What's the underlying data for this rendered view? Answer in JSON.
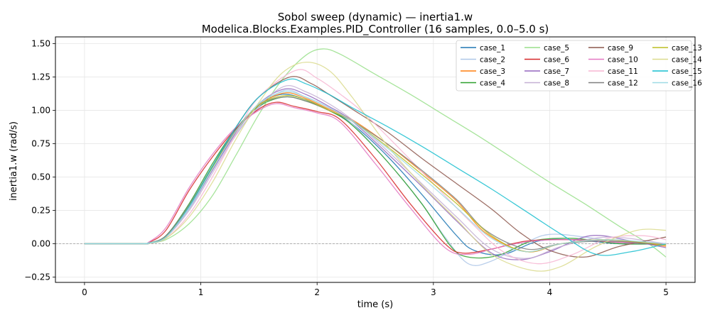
{
  "chart_data": {
    "type": "line",
    "title": "Sobol sweep (dynamic) — inertia1.w",
    "subtitle": "Modelica.Blocks.Examples.PID_Controller  (16 samples, 0.0–5.0 s)",
    "xlabel": "time (s)",
    "ylabel": "inertia1.w (rad/s)",
    "xlim": [
      -0.25,
      5.25
    ],
    "ylim": [
      -0.29,
      1.55
    ],
    "xticks": [
      0,
      1,
      2,
      3,
      4,
      5
    ],
    "xtick_labels": [
      "0",
      "1",
      "2",
      "3",
      "4",
      "5"
    ],
    "yticks": [
      -0.25,
      0.0,
      0.25,
      0.5,
      0.75,
      1.0,
      1.25,
      1.5
    ],
    "ytick_labels": [
      "−0.25",
      "0.00",
      "0.25",
      "0.50",
      "0.75",
      "1.00",
      "1.25",
      "1.50"
    ],
    "grid": true,
    "zero_line": true,
    "legend_position": "top-right",
    "legend_columns": 4,
    "series": [
      {
        "name": "case_1",
        "color": "#1f77b4",
        "x": [
          0,
          0.5,
          0.55,
          0.7,
          0.9,
          1.1,
          1.3,
          1.5,
          1.7,
          1.9,
          2.1,
          2.3,
          2.6,
          2.9,
          3.2,
          3.35,
          3.6,
          3.9,
          4.2,
          4.6,
          5.0
        ],
        "y": [
          0,
          0,
          0.005,
          0.05,
          0.28,
          0.58,
          0.84,
          1.04,
          1.12,
          1.08,
          1.0,
          0.9,
          0.66,
          0.37,
          0.06,
          -0.05,
          -0.08,
          0.02,
          0.03,
          0.0,
          0.0
        ]
      },
      {
        "name": "case_2",
        "color": "#aec7e8",
        "x": [
          0,
          0.5,
          0.55,
          0.7,
          0.9,
          1.1,
          1.3,
          1.5,
          1.72,
          1.9,
          2.1,
          2.3,
          2.6,
          2.9,
          3.1,
          3.3,
          3.5,
          3.8,
          4.0,
          4.3,
          4.7,
          5.0
        ],
        "y": [
          0,
          0,
          0.005,
          0.05,
          0.26,
          0.55,
          0.82,
          1.02,
          1.15,
          1.1,
          1.02,
          0.9,
          0.62,
          0.3,
          0.05,
          -0.15,
          -0.13,
          0.01,
          0.07,
          0.05,
          0.0,
          0.0
        ]
      },
      {
        "name": "case_3",
        "color": "#ff7f0e",
        "x": [
          0,
          0.5,
          0.55,
          0.7,
          0.9,
          1.1,
          1.3,
          1.5,
          1.72,
          1.9,
          2.1,
          2.3,
          2.6,
          2.9,
          3.2,
          3.45,
          3.8,
          4.1,
          4.5,
          5.0
        ],
        "y": [
          0,
          0,
          0.005,
          0.05,
          0.28,
          0.57,
          0.84,
          1.04,
          1.13,
          1.09,
          1.01,
          0.93,
          0.75,
          0.54,
          0.32,
          0.08,
          -0.06,
          0.0,
          0.03,
          -0.02
        ]
      },
      {
        "name": "case_4",
        "color": "#2ca02c",
        "x": [
          0,
          0.5,
          0.55,
          0.7,
          0.9,
          1.1,
          1.3,
          1.5,
          1.72,
          1.9,
          2.1,
          2.3,
          2.6,
          2.9,
          3.15,
          3.3,
          3.55,
          3.85,
          4.2,
          4.6,
          5.0
        ],
        "y": [
          0,
          0,
          0.005,
          0.06,
          0.3,
          0.6,
          0.86,
          1.03,
          1.1,
          1.07,
          1.0,
          0.89,
          0.62,
          0.3,
          -0.02,
          -0.1,
          -0.09,
          0.02,
          0.04,
          0.0,
          0.0
        ]
      },
      {
        "name": "case_5",
        "color": "#98df8a",
        "x": [
          0,
          0.5,
          0.55,
          0.7,
          0.9,
          1.1,
          1.3,
          1.5,
          1.7,
          1.9,
          2.05,
          2.2,
          2.5,
          2.8,
          3.1,
          3.4,
          3.7,
          4.0,
          4.3,
          4.6,
          4.85,
          5.0
        ],
        "y": [
          0,
          0,
          0.003,
          0.03,
          0.15,
          0.36,
          0.66,
          0.97,
          1.23,
          1.41,
          1.46,
          1.42,
          1.27,
          1.12,
          0.96,
          0.8,
          0.63,
          0.46,
          0.3,
          0.13,
          0.0,
          -0.1
        ]
      },
      {
        "name": "case_6",
        "color": "#d62728",
        "x": [
          0,
          0.5,
          0.55,
          0.7,
          0.9,
          1.1,
          1.3,
          1.5,
          1.65,
          1.8,
          2.0,
          2.2,
          2.5,
          2.8,
          3.1,
          3.25,
          3.5,
          3.8,
          4.2,
          4.6,
          5.0
        ],
        "y": [
          0,
          0,
          0.008,
          0.1,
          0.4,
          0.65,
          0.86,
          1.01,
          1.06,
          1.03,
          0.99,
          0.93,
          0.64,
          0.3,
          0.0,
          -0.07,
          -0.04,
          0.02,
          0.03,
          0.01,
          0.0
        ]
      },
      {
        "name": "case_7",
        "color": "#9467bd",
        "x": [
          0,
          0.5,
          0.55,
          0.7,
          0.9,
          1.1,
          1.3,
          1.5,
          1.72,
          1.9,
          2.1,
          2.3,
          2.6,
          2.9,
          3.2,
          3.5,
          3.75,
          4.0,
          4.35,
          4.7,
          5.0
        ],
        "y": [
          0,
          0,
          0.005,
          0.05,
          0.27,
          0.55,
          0.83,
          1.05,
          1.16,
          1.12,
          1.03,
          0.92,
          0.68,
          0.43,
          0.17,
          -0.07,
          -0.12,
          -0.06,
          0.06,
          0.02,
          -0.03
        ]
      },
      {
        "name": "case_8",
        "color": "#c5b0d5",
        "x": [
          0,
          0.5,
          0.55,
          0.7,
          0.9,
          1.1,
          1.3,
          1.5,
          1.72,
          1.9,
          2.1,
          2.3,
          2.6,
          2.9,
          3.2,
          3.5,
          3.8,
          4.1,
          4.5,
          5.0
        ],
        "y": [
          0,
          0,
          0.004,
          0.05,
          0.25,
          0.53,
          0.81,
          1.03,
          1.18,
          1.14,
          1.05,
          0.93,
          0.7,
          0.45,
          0.2,
          -0.04,
          -0.11,
          -0.02,
          0.05,
          0.0
        ]
      },
      {
        "name": "case_9",
        "color": "#8c564b",
        "x": [
          0,
          0.5,
          0.55,
          0.7,
          0.9,
          1.1,
          1.3,
          1.5,
          1.77,
          1.95,
          2.1,
          2.3,
          2.6,
          2.9,
          3.2,
          3.5,
          3.75,
          4.0,
          4.3,
          4.6,
          5.0
        ],
        "y": [
          0,
          0,
          0.005,
          0.05,
          0.28,
          0.58,
          0.87,
          1.1,
          1.25,
          1.2,
          1.12,
          1.01,
          0.84,
          0.64,
          0.45,
          0.26,
          0.08,
          -0.05,
          -0.1,
          -0.02,
          0.05
        ]
      },
      {
        "name": "case_10",
        "color": "#e377c2",
        "x": [
          0,
          0.5,
          0.55,
          0.7,
          0.9,
          1.1,
          1.3,
          1.5,
          1.65,
          1.8,
          2.0,
          2.2,
          2.5,
          2.8,
          3.1,
          3.3,
          3.55,
          3.85,
          4.2,
          4.6,
          5.0
        ],
        "y": [
          0,
          0,
          0.01,
          0.12,
          0.42,
          0.67,
          0.87,
          1.0,
          1.05,
          1.02,
          0.98,
          0.91,
          0.6,
          0.27,
          -0.03,
          -0.08,
          -0.03,
          0.02,
          0.03,
          0.01,
          0.0
        ]
      },
      {
        "name": "case_11",
        "color": "#f7b6d2",
        "x": [
          0,
          0.5,
          0.55,
          0.7,
          0.9,
          1.1,
          1.3,
          1.5,
          1.82,
          2.0,
          2.2,
          2.4,
          2.7,
          3.0,
          3.3,
          3.6,
          3.9,
          4.2,
          4.5,
          4.8,
          5.0
        ],
        "y": [
          0,
          0,
          0.003,
          0.04,
          0.22,
          0.5,
          0.82,
          1.1,
          1.3,
          1.24,
          1.12,
          0.98,
          0.72,
          0.45,
          0.18,
          -0.06,
          -0.15,
          -0.08,
          0.04,
          0.06,
          0.03
        ]
      },
      {
        "name": "case_12",
        "color": "#7f7f7f",
        "x": [
          0,
          0.5,
          0.55,
          0.7,
          0.9,
          1.1,
          1.3,
          1.5,
          1.72,
          1.9,
          2.1,
          2.3,
          2.6,
          2.9,
          3.2,
          3.45,
          3.8,
          4.1,
          4.5,
          5.0
        ],
        "y": [
          0,
          0,
          0.005,
          0.06,
          0.29,
          0.58,
          0.85,
          1.04,
          1.1,
          1.07,
          1.0,
          0.92,
          0.75,
          0.55,
          0.33,
          0.1,
          -0.04,
          0.0,
          0.02,
          -0.01
        ]
      },
      {
        "name": "case_13",
        "color": "#bcbd22",
        "x": [
          0,
          0.5,
          0.55,
          0.7,
          0.9,
          1.1,
          1.3,
          1.5,
          1.72,
          1.9,
          2.1,
          2.3,
          2.6,
          2.9,
          3.2,
          3.5,
          3.8,
          4.1,
          4.5,
          5.0
        ],
        "y": [
          0,
          0,
          0.005,
          0.05,
          0.28,
          0.57,
          0.84,
          1.04,
          1.11,
          1.08,
          1.0,
          0.92,
          0.73,
          0.52,
          0.3,
          0.06,
          -0.06,
          0.0,
          0.03,
          -0.01
        ]
      },
      {
        "name": "case_14",
        "color": "#dbdb8d",
        "x": [
          0,
          0.5,
          0.55,
          0.7,
          0.9,
          1.1,
          1.3,
          1.5,
          1.7,
          1.9,
          2.1,
          2.3,
          2.6,
          2.9,
          3.2,
          3.5,
          3.85,
          4.1,
          4.4,
          4.75,
          5.0
        ],
        "y": [
          0,
          0,
          0.003,
          0.04,
          0.2,
          0.46,
          0.78,
          1.06,
          1.28,
          1.36,
          1.3,
          1.1,
          0.74,
          0.44,
          0.18,
          -0.08,
          -0.2,
          -0.17,
          -0.02,
          0.1,
          0.1
        ]
      },
      {
        "name": "case_15",
        "color": "#17becf",
        "x": [
          0,
          0.5,
          0.55,
          0.7,
          0.9,
          1.1,
          1.3,
          1.5,
          1.75,
          1.9,
          2.1,
          2.3,
          2.6,
          2.9,
          3.2,
          3.5,
          3.8,
          4.1,
          4.4,
          4.7,
          5.0
        ],
        "y": [
          0,
          0,
          0.005,
          0.05,
          0.28,
          0.58,
          0.87,
          1.1,
          1.23,
          1.2,
          1.12,
          1.02,
          0.88,
          0.73,
          0.57,
          0.41,
          0.24,
          0.07,
          -0.08,
          -0.06,
          0.0
        ]
      },
      {
        "name": "case_16",
        "color": "#9edae5",
        "x": [
          0,
          0.5,
          0.55,
          0.7,
          0.9,
          1.1,
          1.3,
          1.5,
          1.72,
          1.9,
          2.1,
          2.3,
          2.6,
          2.9,
          3.2,
          3.5,
          3.8,
          4.1,
          4.5,
          5.0
        ],
        "y": [
          0,
          0,
          0.005,
          0.05,
          0.27,
          0.56,
          0.84,
          1.05,
          1.14,
          1.1,
          1.02,
          0.92,
          0.72,
          0.5,
          0.27,
          0.04,
          -0.06,
          0.0,
          0.03,
          0.0
        ]
      }
    ]
  }
}
